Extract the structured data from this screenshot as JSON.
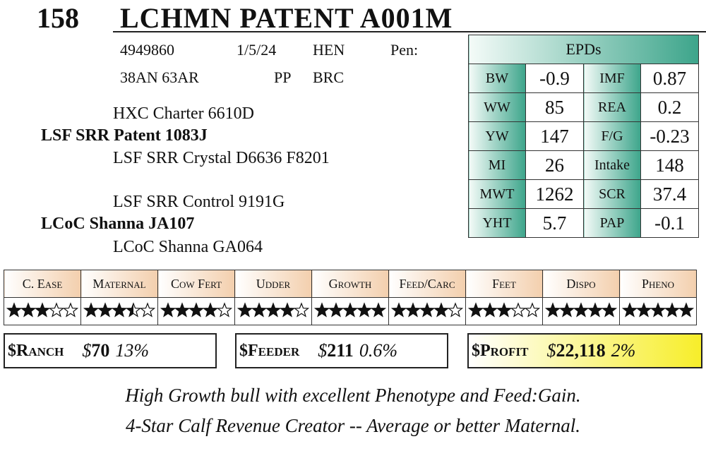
{
  "header": {
    "lot": "158",
    "name": "LCHMN PATENT A001M"
  },
  "info": {
    "rows": [
      [
        "4949860",
        "1/5/24",
        "HEN",
        "Pen:"
      ],
      [
        "38AN 63AR",
        "PP",
        "BRC"
      ]
    ]
  },
  "pedigree": {
    "sire_sire": "HXC Charter 6610D",
    "sire": "LSF SRR Patent 1083J",
    "sire_dam": "LSF SRR Crystal D6636 F8201",
    "dam_sire": "LSF SRR Control 9191G",
    "dam": "LCoC Shanna JA107",
    "dam_dam": "LCoC Shanna GA064"
  },
  "epds": {
    "title": "EPDs",
    "rows": [
      [
        "BW",
        "-0.9",
        "IMF",
        "0.87"
      ],
      [
        "WW",
        "85",
        "REA",
        "0.2"
      ],
      [
        "YW",
        "147",
        "F/G",
        "-0.23"
      ],
      [
        "MI",
        "26",
        "Intake",
        "148"
      ],
      [
        "MWT",
        "1262",
        "SCR",
        "37.4"
      ],
      [
        "YHT",
        "5.7",
        "PAP",
        "-0.1"
      ]
    ]
  },
  "ratings": {
    "headers": [
      "C. Ease",
      "Maternal",
      "Cow Fert",
      "Udder",
      "Growth",
      "Feed/Carc",
      "Feet",
      "Dispo",
      "Pheno"
    ],
    "stars": [
      3,
      3.5,
      4,
      4,
      5,
      4,
      3,
      5,
      5
    ],
    "max": 5
  },
  "indexes": [
    {
      "label": "$Ranch",
      "dollar": "$",
      "value": "70",
      "pct": "13%"
    },
    {
      "label": "$Feeder",
      "dollar": "$",
      "value": "211",
      "pct": "0.6%"
    },
    {
      "label": "$Profit",
      "dollar": "$",
      "value": "22,118",
      "pct": "2%"
    }
  ],
  "comments": [
    "High Growth bull with excellent Phenotype and Feed:Gain.",
    "4-Star Calf Revenue Creator -- Average or better Maternal."
  ]
}
